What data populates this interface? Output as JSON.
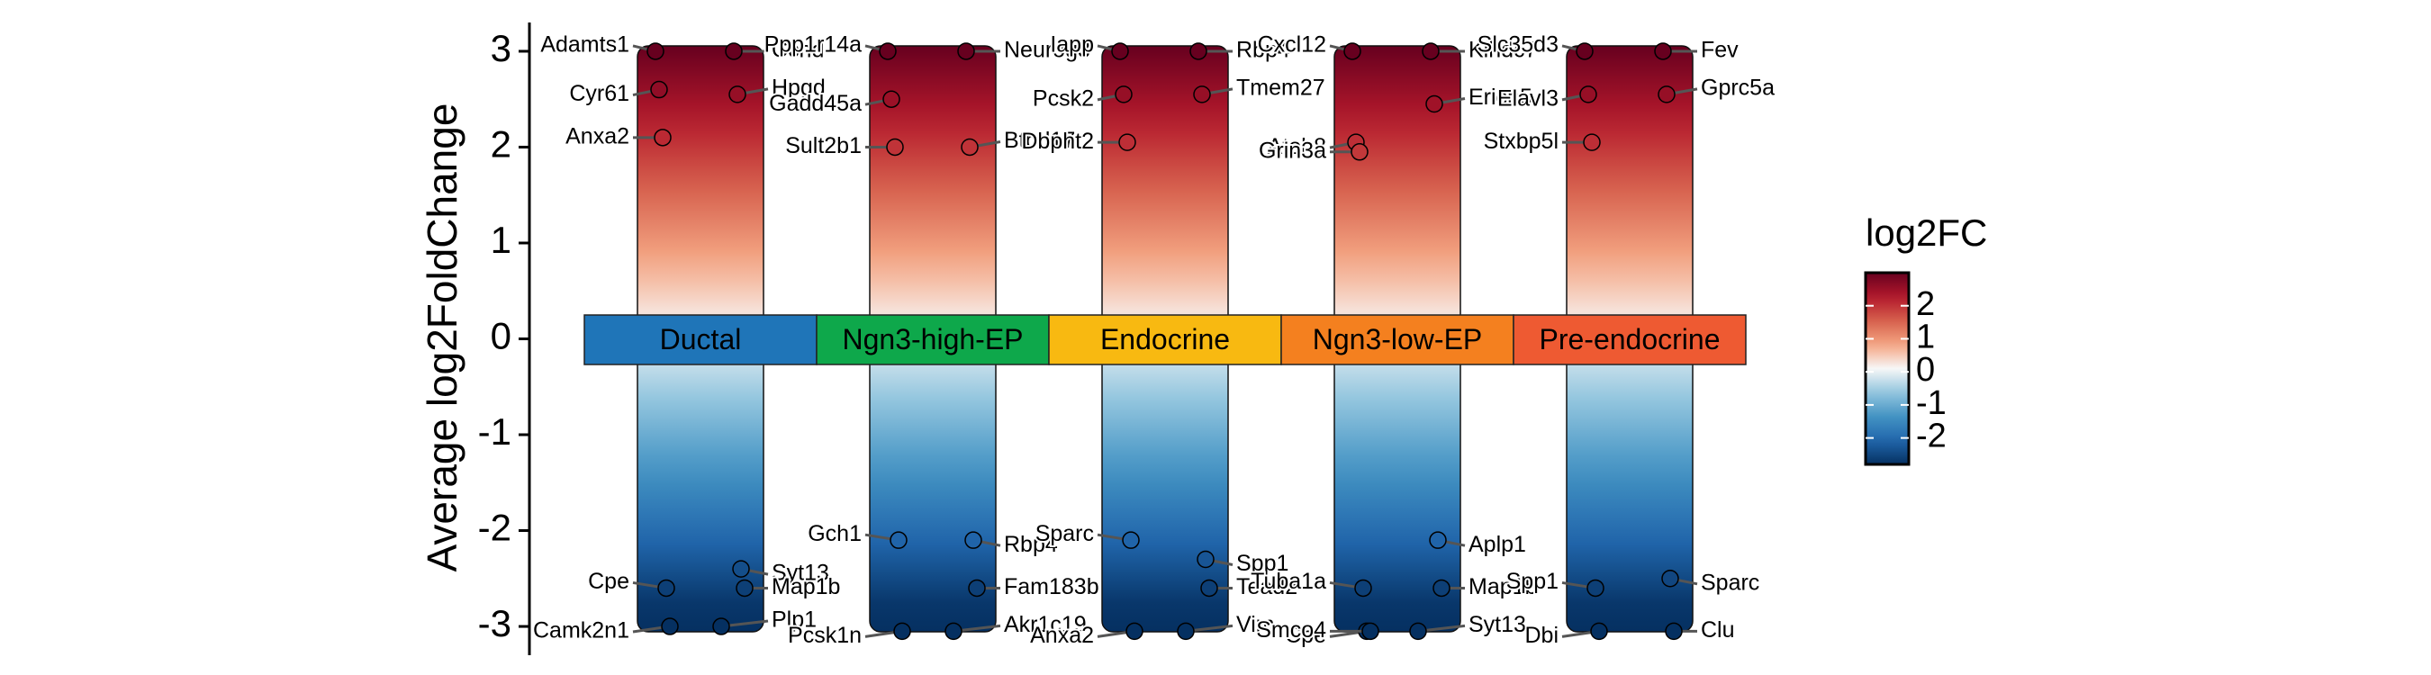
{
  "chart_data": {
    "type": "jitter",
    "ylabel": "Average log2FoldChange",
    "ylim": [
      -3.3,
      3.3
    ],
    "yticks": [
      -3,
      -2,
      -1,
      0,
      1,
      2,
      3
    ],
    "categories": [
      "Ductal",
      "Ngn3-high-EP",
      "Endocrine",
      "Ngn3-low-EP",
      "Pre-endocrine"
    ],
    "category_colors": [
      "#1f75b8",
      "#0ea84b",
      "#f8b911",
      "#f4801f",
      "#ee5a32"
    ],
    "genes": [
      [
        {
          "name": "Adamts1",
          "value": 3.0
        },
        {
          "name": "Ccnd",
          "value": 3.0
        },
        {
          "name": "Cyr61",
          "value": 2.6
        },
        {
          "name": "Hpgd",
          "value": 2.55
        },
        {
          "name": "Anxa2",
          "value": 2.1
        },
        {
          "name": "Syt13",
          "value": -2.4
        },
        {
          "name": "Cpe",
          "value": -2.6
        },
        {
          "name": "Map1b",
          "value": -2.6
        },
        {
          "name": "Camk2n1",
          "value": -3.0
        },
        {
          "name": "Plp1",
          "value": -3.0
        }
      ],
      [
        {
          "name": "Ppp1r14a",
          "value": 3.0
        },
        {
          "name": "Neurog3",
          "value": 3.0
        },
        {
          "name": "Gadd45a",
          "value": 2.5
        },
        {
          "name": "Btbd17",
          "value": 2.0
        },
        {
          "name": "Sult2b1",
          "value": 2.0
        },
        {
          "name": "Rbp4",
          "value": -2.1
        },
        {
          "name": "Gch1",
          "value": -2.1
        },
        {
          "name": "Fam183b",
          "value": -2.6
        },
        {
          "name": "Pcsk1n",
          "value": -3.05
        },
        {
          "name": "Akr1c19",
          "value": -3.05
        }
      ],
      [
        {
          "name": "Iapp",
          "value": 3.0
        },
        {
          "name": "Rbp4",
          "value": 3.0
        },
        {
          "name": "Pcsk2",
          "value": 2.55
        },
        {
          "name": "Tmem27",
          "value": 2.55
        },
        {
          "name": "Dbpht2",
          "value": 2.05
        },
        {
          "name": "Spp1",
          "value": -2.3
        },
        {
          "name": "Sparc",
          "value": -2.1
        },
        {
          "name": "Tead2",
          "value": -2.6
        },
        {
          "name": "Anxa2",
          "value": -3.05
        },
        {
          "name": "Vim",
          "value": -3.05
        }
      ],
      [
        {
          "name": "Cxcl12",
          "value": 3.0
        },
        {
          "name": "Klhdc7",
          "value": 3.0
        },
        {
          "name": "Atoh8",
          "value": 2.05
        },
        {
          "name": "Erich5",
          "value": 2.45
        },
        {
          "name": "Grin3a",
          "value": 1.95
        },
        {
          "name": "Aplp1",
          "value": -2.1
        },
        {
          "name": "Tuba1a",
          "value": -2.6
        },
        {
          "name": "Map1b",
          "value": -2.6
        },
        {
          "name": "Cpe",
          "value": -3.05
        },
        {
          "name": "Syt13",
          "value": -3.05
        },
        {
          "name": "Smco4",
          "value": -3.05
        }
      ],
      [
        {
          "name": "Slc35d3",
          "value": 3.0
        },
        {
          "name": "Fev",
          "value": 3.0
        },
        {
          "name": "Elavl3",
          "value": 2.55
        },
        {
          "name": "Gprc5a",
          "value": 2.55
        },
        {
          "name": "Stxbp5l",
          "value": 2.05
        },
        {
          "name": "Sparc",
          "value": -2.5
        },
        {
          "name": "Spp1",
          "value": -2.6
        },
        {
          "name": "Clu",
          "value": -3.05
        },
        {
          "name": "Dbi",
          "value": -3.05
        }
      ]
    ],
    "legend_title": "log2FC",
    "clim": [
      -2.8,
      3.0
    ],
    "cticks": [
      -2,
      -1,
      0,
      1,
      2
    ],
    "colorscale": [
      "#053061",
      "#2166ac",
      "#4393c3",
      "#92c5de",
      "#f7f7f7",
      "#f4a582",
      "#d6604d",
      "#b2182b",
      "#67001f"
    ]
  }
}
